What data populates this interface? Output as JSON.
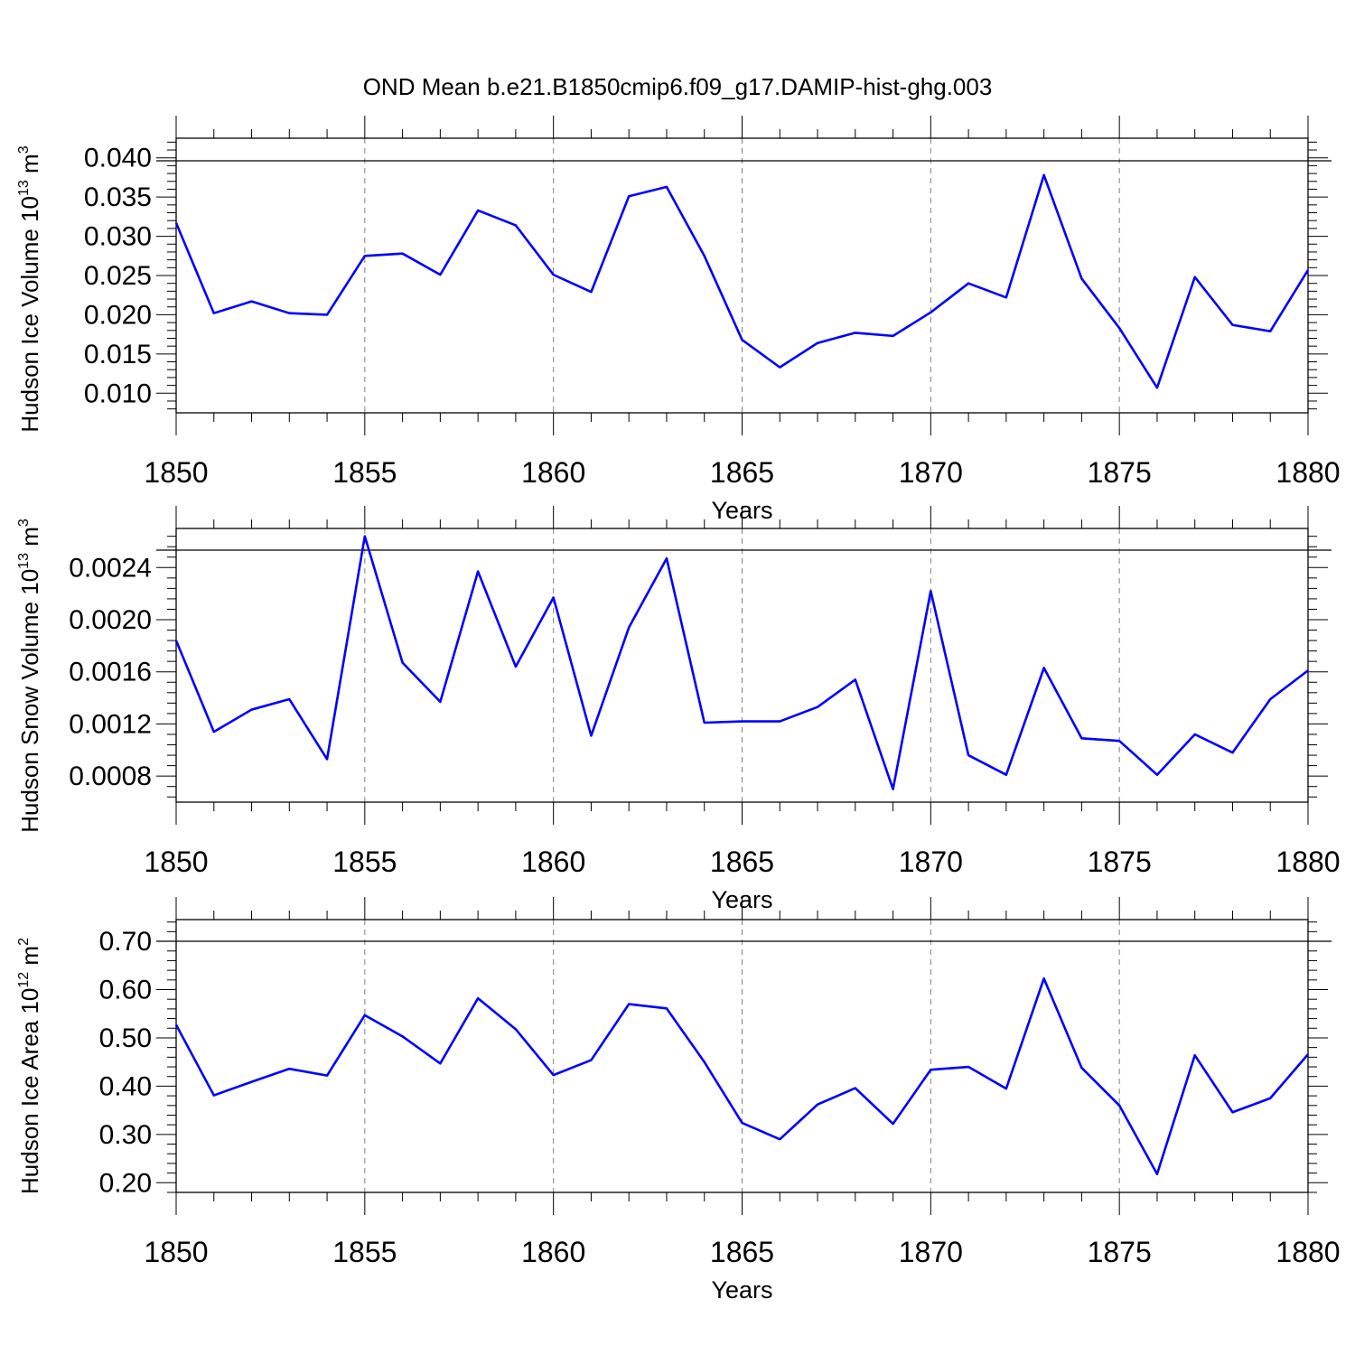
{
  "title": "OND Mean b.e21.B1850cmip6.f09_g17.DAMIP-hist-ghg.003",
  "colors": {
    "line": "#0000ff",
    "axis": "#000000",
    "grid": "#7f7f7f"
  },
  "chart_data": [
    {
      "type": "line",
      "xlabel": "Years",
      "ylabel_main": "Hudson Ice Volume 10",
      "ylabel_exp": "13",
      "ylabel_unit": " m",
      "ylabel_unit_exp": "3",
      "xlim": [
        1850,
        1880
      ],
      "ylim": [
        0.0075,
        0.0425
      ],
      "x_ticks": [
        1850,
        1855,
        1860,
        1865,
        1870,
        1875,
        1880
      ],
      "x_tick_labels": [
        "1850",
        "1855",
        "1860",
        "1865",
        "1870",
        "1875",
        "1880"
      ],
      "y_ticks": [
        0.01,
        0.015,
        0.02,
        0.025,
        0.03,
        0.035,
        0.04
      ],
      "y_tick_labels": [
        "0.010",
        "0.015",
        "0.020",
        "0.025",
        "0.030",
        "0.035",
        "0.040"
      ],
      "grid": "vertical dashed at labeled x ticks",
      "x": [
        1850,
        1851,
        1852,
        1853,
        1854,
        1855,
        1856,
        1857,
        1858,
        1859,
        1860,
        1861,
        1862,
        1863,
        1864,
        1865,
        1866,
        1867,
        1868,
        1869,
        1870,
        1871,
        1872,
        1873,
        1874,
        1875,
        1876,
        1877,
        1878,
        1879,
        1880
      ],
      "values": [
        0.0317,
        0.0202,
        0.0217,
        0.0202,
        0.02,
        0.0275,
        0.0278,
        0.0251,
        0.0333,
        0.0314,
        0.0251,
        0.0229,
        0.0351,
        0.0363,
        0.0275,
        0.0168,
        0.0133,
        0.0164,
        0.0177,
        0.0173,
        0.0203,
        0.024,
        0.0222,
        0.0378,
        0.0246,
        0.0183,
        0.0107,
        0.0248,
        0.0187,
        0.0179,
        0.0257
      ]
    },
    {
      "type": "line",
      "xlabel": "Years",
      "ylabel_main": "Hudson Snow Volume 10",
      "ylabel_exp": "13",
      "ylabel_unit": " m",
      "ylabel_unit_exp": "3",
      "xlim": [
        1850,
        1880
      ],
      "ylim": [
        0.0006,
        0.0027
      ],
      "x_ticks": [
        1850,
        1855,
        1860,
        1865,
        1870,
        1875,
        1880
      ],
      "x_tick_labels": [
        "1850",
        "1855",
        "1860",
        "1865",
        "1870",
        "1875",
        "1880"
      ],
      "y_ticks": [
        0.0008,
        0.0012,
        0.0016,
        0.002,
        0.0024
      ],
      "y_tick_labels": [
        "0.0008",
        "0.0012",
        "0.0016",
        "0.0020",
        "0.0024"
      ],
      "grid": "vertical dashed at labeled x ticks",
      "x": [
        1850,
        1851,
        1852,
        1853,
        1854,
        1855,
        1856,
        1857,
        1858,
        1859,
        1860,
        1861,
        1862,
        1863,
        1864,
        1865,
        1866,
        1867,
        1868,
        1869,
        1870,
        1871,
        1872,
        1873,
        1874,
        1875,
        1876,
        1877,
        1878,
        1879,
        1880
      ],
      "values": [
        0.00184,
        0.00114,
        0.00131,
        0.00139,
        0.00093,
        0.00264,
        0.00167,
        0.00137,
        0.00237,
        0.00164,
        0.00217,
        0.00111,
        0.00194,
        0.00247,
        0.00121,
        0.00122,
        0.00122,
        0.00133,
        0.00154,
        0.0007,
        0.00222,
        0.00096,
        0.00081,
        0.00163,
        0.00109,
        0.00107,
        0.00081,
        0.00112,
        0.00098,
        0.00139,
        0.00161
      ]
    },
    {
      "type": "line",
      "xlabel": "Years",
      "ylabel_main": "Hudson Ice Area 10",
      "ylabel_exp": "12",
      "ylabel_unit": " m",
      "ylabel_unit_exp": "2",
      "xlim": [
        1850,
        1880
      ],
      "ylim": [
        0.18,
        0.745
      ],
      "x_ticks": [
        1850,
        1855,
        1860,
        1865,
        1870,
        1875,
        1880
      ],
      "x_tick_labels": [
        "1850",
        "1855",
        "1860",
        "1865",
        "1870",
        "1875",
        "1880"
      ],
      "y_ticks": [
        0.2,
        0.3,
        0.4,
        0.5,
        0.6,
        0.7
      ],
      "y_tick_labels": [
        "0.20",
        "0.30",
        "0.40",
        "0.50",
        "0.60",
        "0.70"
      ],
      "grid": "vertical dashed at labeled x ticks",
      "x": [
        1850,
        1851,
        1852,
        1853,
        1854,
        1855,
        1856,
        1857,
        1858,
        1859,
        1860,
        1861,
        1862,
        1863,
        1864,
        1865,
        1866,
        1867,
        1868,
        1869,
        1870,
        1871,
        1872,
        1873,
        1874,
        1875,
        1876,
        1877,
        1878,
        1879,
        1880
      ],
      "values": [
        0.527,
        0.381,
        0.409,
        0.436,
        0.422,
        0.547,
        0.503,
        0.447,
        0.582,
        0.518,
        0.423,
        0.454,
        0.57,
        0.561,
        0.45,
        0.324,
        0.29,
        0.362,
        0.396,
        0.322,
        0.434,
        0.44,
        0.395,
        0.623,
        0.438,
        0.36,
        0.218,
        0.464,
        0.346,
        0.375,
        0.466
      ]
    }
  ]
}
